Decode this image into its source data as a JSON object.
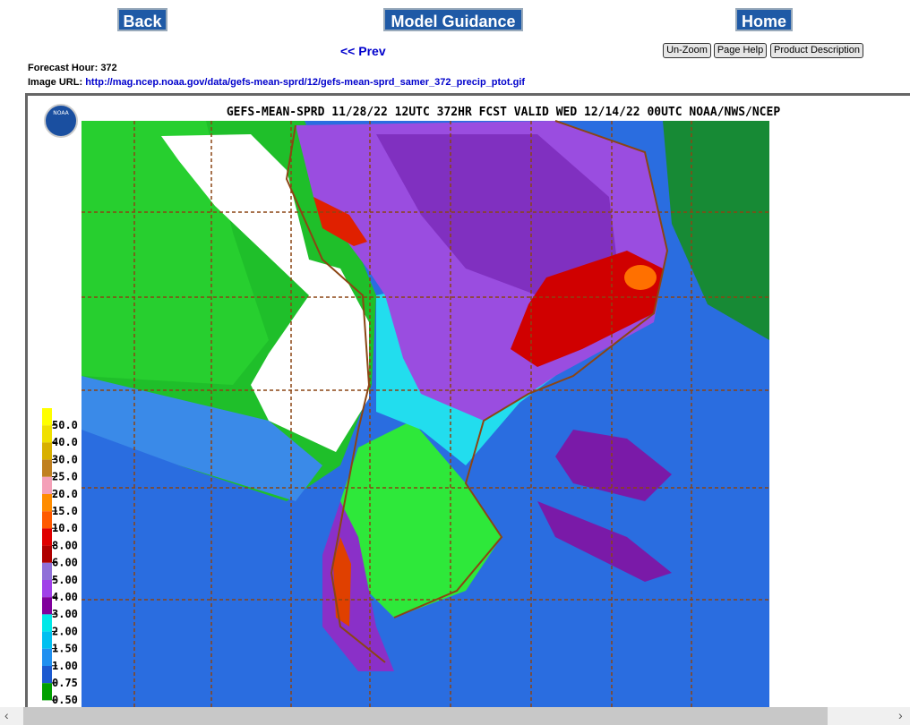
{
  "nav": {
    "back": "Back",
    "model_guidance": "Model Guidance",
    "home": "Home",
    "prev": "<< Prev"
  },
  "tools": {
    "unzoom": "Un-Zoom",
    "page_help": "Page Help",
    "product_description": "Product Description"
  },
  "info": {
    "forecast_hour_label": "Forecast Hour:",
    "forecast_hour": "372",
    "image_url_label": "Image URL:",
    "image_url": "http://mag.ncep.noaa.gov/data/gefs-mean-sprd/12/gefs-mean-sprd_samer_372_precip_ptot.gif"
  },
  "map": {
    "title": "GEFS-MEAN-SPRD 11/28/22 12UTC 372HR FCST VALID WED 12/14/22 00UTC NOAA/NWS/NCEP",
    "logo": "NOAA",
    "legend": [
      "50.0",
      "40.0",
      "30.0",
      "25.0",
      "20.0",
      "15.0",
      "10.0",
      "8.00",
      "6.00",
      "5.00",
      "4.00",
      "3.00",
      "2.00",
      "1.50",
      "1.00",
      "0.75",
      "0.50"
    ]
  }
}
